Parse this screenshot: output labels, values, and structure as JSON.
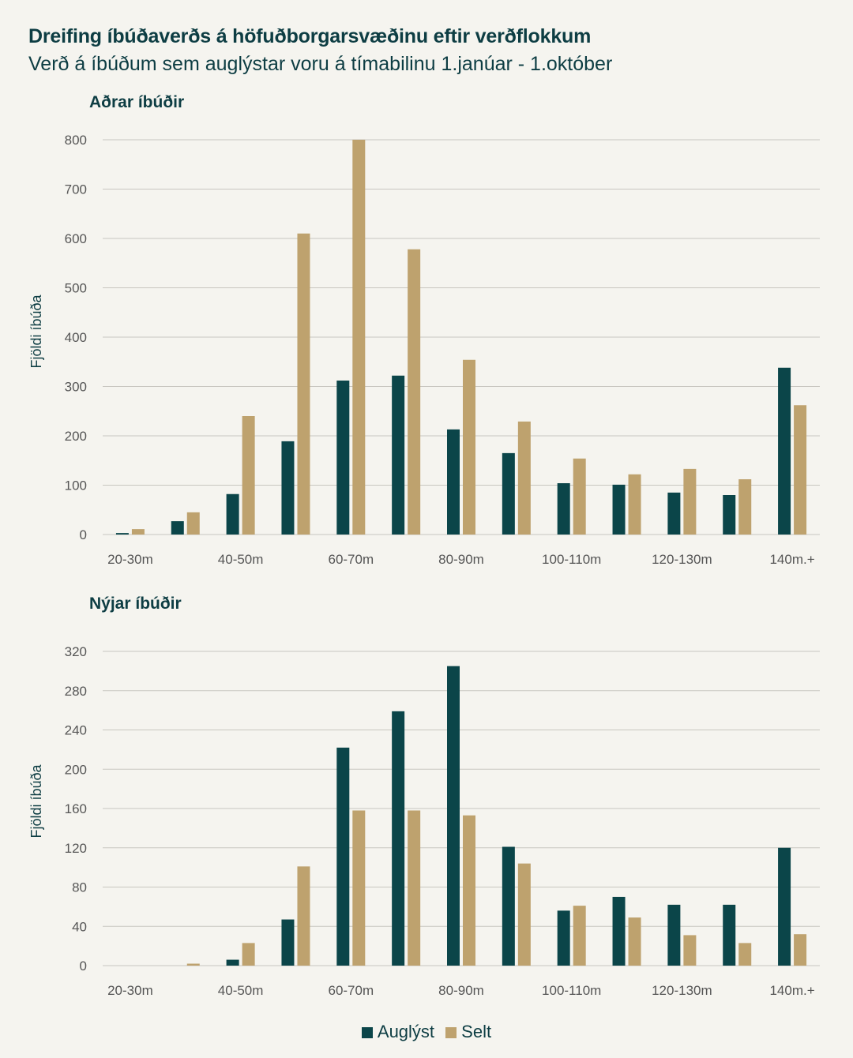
{
  "title": "Dreifing íbúðaverðs á höfuðborgarsvæðinu eftir verðflokkum",
  "subtitle": "Verð á íbúðum sem auglýstar voru á tímabilinu 1.janúar - 1.október",
  "colors": {
    "auglyst": "#0b4549",
    "selt": "#bea26e",
    "grid": "#c8c6c0",
    "tick": "#555555"
  },
  "legend": [
    {
      "name": "Auglýst",
      "color": "#0b4549"
    },
    {
      "name": "Selt",
      "color": "#bea26e"
    }
  ],
  "chart_data": [
    {
      "type": "bar",
      "title": "Aðrar íbúðir",
      "ylabel": "Fjöldi íbúða",
      "xlabel": "",
      "ylim": [
        0,
        800
      ],
      "yticks": [
        0,
        100,
        200,
        300,
        400,
        500,
        600,
        700,
        800
      ],
      "grid": true,
      "categories": [
        "20-30m",
        "",
        "40-50m",
        "",
        "60-70m",
        "",
        "80-90m",
        "",
        "100-110m",
        "",
        "120-130m",
        "",
        "140m.+"
      ],
      "series": [
        {
          "name": "Auglýst",
          "values": [
            3,
            27,
            82,
            189,
            312,
            322,
            213,
            165,
            104,
            101,
            85,
            80,
            338
          ]
        },
        {
          "name": "Selt",
          "values": [
            11,
            45,
            240,
            610,
            800,
            578,
            354,
            229,
            154,
            122,
            133,
            112,
            262
          ]
        }
      ]
    },
    {
      "type": "bar",
      "title": "Nýjar íbúðir",
      "ylabel": "Fjöldi íbúða",
      "xlabel": "",
      "ylim": [
        0,
        320
      ],
      "yticks": [
        0,
        40,
        80,
        120,
        160,
        200,
        240,
        280,
        320
      ],
      "grid": true,
      "categories": [
        "20-30m",
        "",
        "40-50m",
        "",
        "60-70m",
        "",
        "80-90m",
        "",
        "100-110m",
        "",
        "120-130m",
        "",
        "140m.+"
      ],
      "series": [
        {
          "name": "Auglýst",
          "values": [
            0,
            0,
            6,
            47,
            222,
            259,
            305,
            121,
            56,
            70,
            62,
            62,
            120
          ]
        },
        {
          "name": "Selt",
          "values": [
            0,
            2,
            23,
            101,
            158,
            158,
            153,
            104,
            61,
            49,
            31,
            23,
            32
          ]
        }
      ]
    }
  ]
}
